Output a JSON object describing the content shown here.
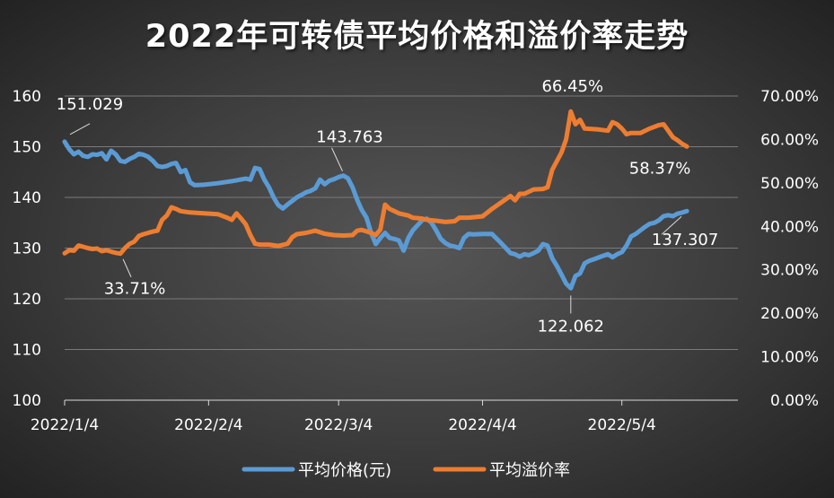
{
  "chart_data": {
    "type": "line",
    "title": "2022年可转债平均价格和溢价率走势",
    "x_tick_labels": [
      "2022/1/4",
      "2022/2/4",
      "2022/3/4",
      "2022/4/4",
      "2022/5/4"
    ],
    "x_ticks": [
      0,
      31,
      59,
      90,
      120
    ],
    "x_range": [
      0,
      145
    ],
    "y_left": {
      "range": [
        100,
        160
      ],
      "ticks": [
        100,
        110,
        120,
        130,
        140,
        150,
        160
      ]
    },
    "y_right": {
      "range": [
        0,
        70
      ],
      "ticks": [
        "0.00%",
        "10.00%",
        "20.00%",
        "30.00%",
        "40.00%",
        "50.00%",
        "60.00%",
        "70.00%"
      ]
    },
    "grid": true,
    "legend_position": "bottom",
    "colors": {
      "price": "#5b9bd5",
      "premium": "#ed7d31"
    },
    "series": [
      {
        "name": "平均价格(元)",
        "axis": "left",
        "points": [
          [
            0,
            151.0
          ],
          [
            1,
            149.5
          ],
          [
            2,
            148.5
          ],
          [
            3,
            149.0
          ],
          [
            4,
            148.2
          ],
          [
            5,
            148.0
          ],
          [
            6,
            148.5
          ],
          [
            7,
            148.4
          ],
          [
            8,
            148.7
          ],
          [
            9,
            147.5
          ],
          [
            10,
            149.2
          ],
          [
            11,
            148.5
          ],
          [
            12,
            147.2
          ],
          [
            13,
            147.0
          ],
          [
            14,
            147.6
          ],
          [
            15,
            148.0
          ],
          [
            16,
            148.6
          ],
          [
            17,
            148.4
          ],
          [
            18,
            148.0
          ],
          [
            19,
            147.2
          ],
          [
            20,
            146.2
          ],
          [
            21,
            146.0
          ],
          [
            22,
            146.2
          ],
          [
            23,
            146.6
          ],
          [
            24,
            146.8
          ],
          [
            25,
            145.0
          ],
          [
            26,
            145.4
          ],
          [
            27,
            143.0
          ],
          [
            28,
            142.4
          ],
          [
            30,
            142.5
          ],
          [
            33,
            142.8
          ],
          [
            36,
            143.2
          ],
          [
            39,
            143.7
          ],
          [
            40,
            143.5
          ],
          [
            41,
            145.8
          ],
          [
            42,
            145.6
          ],
          [
            43,
            143.5
          ],
          [
            44,
            142.0
          ],
          [
            45,
            140.0
          ],
          [
            46,
            138.5
          ],
          [
            47,
            137.8
          ],
          [
            48,
            138.6
          ],
          [
            49,
            139.3
          ],
          [
            50,
            140.0
          ],
          [
            51,
            140.5
          ],
          [
            52,
            141.0
          ],
          [
            53,
            141.3
          ],
          [
            54,
            141.8
          ],
          [
            55,
            143.5
          ],
          [
            56,
            142.6
          ],
          [
            57,
            143.3
          ],
          [
            58,
            143.6
          ],
          [
            59,
            144.0
          ],
          [
            60,
            144.3
          ],
          [
            61,
            143.763
          ],
          [
            62,
            142.0
          ],
          [
            63,
            139.5
          ],
          [
            64,
            137.5
          ],
          [
            65,
            136.0
          ],
          [
            66,
            133.0
          ],
          [
            67,
            130.8
          ],
          [
            68,
            132.0
          ],
          [
            69,
            133.0
          ],
          [
            70,
            132.0
          ],
          [
            71,
            131.8
          ],
          [
            72,
            131.5
          ],
          [
            73,
            129.5
          ],
          [
            74,
            132.0
          ],
          [
            75,
            133.5
          ],
          [
            76,
            134.5
          ],
          [
            77,
            135.5
          ],
          [
            78,
            135.8
          ],
          [
            79,
            135.0
          ],
          [
            80,
            133.5
          ],
          [
            81,
            131.8
          ],
          [
            82,
            131.0
          ],
          [
            83,
            130.5
          ],
          [
            84,
            130.3
          ],
          [
            85,
            130.0
          ],
          [
            86,
            132.0
          ],
          [
            87,
            132.8
          ],
          [
            88,
            132.7
          ],
          [
            90,
            132.8
          ],
          [
            92,
            132.8
          ],
          [
            94,
            131.0
          ],
          [
            95,
            130.0
          ],
          [
            96,
            129.0
          ],
          [
            97,
            128.8
          ],
          [
            98,
            128.3
          ],
          [
            99,
            128.8
          ],
          [
            100,
            128.6
          ],
          [
            101,
            129.0
          ],
          [
            102,
            129.5
          ],
          [
            103,
            130.8
          ],
          [
            104,
            130.5
          ],
          [
            105,
            128.0
          ],
          [
            106,
            126.5
          ],
          [
            107,
            124.8
          ],
          [
            108,
            123.0
          ],
          [
            109,
            122.062
          ],
          [
            110,
            124.5
          ],
          [
            111,
            125.0
          ],
          [
            112,
            127.0
          ],
          [
            113,
            127.5
          ],
          [
            114,
            127.8
          ],
          [
            116,
            128.5
          ],
          [
            117,
            128.8
          ],
          [
            118,
            128.2
          ],
          [
            119,
            128.8
          ],
          [
            120,
            129.2
          ],
          [
            121,
            130.5
          ],
          [
            122,
            132.3
          ],
          [
            123,
            132.8
          ],
          [
            124,
            133.5
          ],
          [
            125,
            134.2
          ],
          [
            126,
            134.8
          ],
          [
            127,
            135.0
          ],
          [
            128,
            135.5
          ],
          [
            129,
            136.3
          ],
          [
            130,
            136.5
          ],
          [
            131,
            136.3
          ],
          [
            132,
            136.8
          ],
          [
            133,
            137.0
          ],
          [
            134,
            137.307
          ]
        ]
      },
      {
        "name": "平均溢价率",
        "axis": "right",
        "points": [
          [
            0,
            33.8
          ],
          [
            1,
            34.5
          ],
          [
            2,
            34.4
          ],
          [
            3,
            35.6
          ],
          [
            4,
            35.3
          ],
          [
            5,
            35.0
          ],
          [
            6,
            34.8
          ],
          [
            7,
            34.9
          ],
          [
            8,
            34.3
          ],
          [
            9,
            34.5
          ],
          [
            10,
            34.2
          ],
          [
            11,
            33.9
          ],
          [
            12,
            33.71
          ],
          [
            13,
            35.0
          ],
          [
            14,
            36.0
          ],
          [
            15,
            36.5
          ],
          [
            16,
            37.8
          ],
          [
            17,
            38.2
          ],
          [
            18,
            38.5
          ],
          [
            19,
            38.8
          ],
          [
            20,
            39.0
          ],
          [
            21,
            41.5
          ],
          [
            22,
            42.5
          ],
          [
            23,
            44.4
          ],
          [
            24,
            44.0
          ],
          [
            25,
            43.5
          ],
          [
            27,
            43.2
          ],
          [
            30,
            43.0
          ],
          [
            33,
            42.8
          ],
          [
            35,
            42.0
          ],
          [
            36,
            41.5
          ],
          [
            37,
            43.0
          ],
          [
            38,
            41.8
          ],
          [
            39,
            40.5
          ],
          [
            40,
            38.0
          ],
          [
            41,
            36.0
          ],
          [
            42,
            35.8
          ],
          [
            44,
            35.8
          ],
          [
            46,
            35.5
          ],
          [
            48,
            36.0
          ],
          [
            49,
            37.5
          ],
          [
            50,
            38.2
          ],
          [
            52,
            38.5
          ],
          [
            54,
            39.0
          ],
          [
            56,
            38.3
          ],
          [
            58,
            38.0
          ],
          [
            60,
            37.9
          ],
          [
            62,
            38.0
          ],
          [
            63,
            39.0
          ],
          [
            64,
            39.2
          ],
          [
            66,
            38.5
          ],
          [
            67,
            38.0
          ],
          [
            68,
            39.3
          ],
          [
            69,
            45.0
          ],
          [
            70,
            44.0
          ],
          [
            71,
            43.5
          ],
          [
            72,
            43.0
          ],
          [
            74,
            42.5
          ],
          [
            75,
            42.0
          ],
          [
            77,
            41.8
          ],
          [
            78,
            41.5
          ],
          [
            80,
            41.3
          ],
          [
            82,
            41.0
          ],
          [
            84,
            41.2
          ],
          [
            85,
            42.0
          ],
          [
            87,
            42.0
          ],
          [
            90,
            42.3
          ],
          [
            92,
            44.0
          ],
          [
            94,
            45.5
          ],
          [
            96,
            47.0
          ],
          [
            97,
            46.0
          ],
          [
            98,
            47.5
          ],
          [
            99,
            47.5
          ],
          [
            101,
            48.5
          ],
          [
            103,
            48.6
          ],
          [
            104,
            49.0
          ],
          [
            105,
            53.0
          ],
          [
            106,
            55.0
          ],
          [
            107,
            57.0
          ],
          [
            108,
            60.0
          ],
          [
            109,
            66.45
          ],
          [
            110,
            63.5
          ],
          [
            111,
            64.5
          ],
          [
            112,
            62.5
          ],
          [
            115,
            62.3
          ],
          [
            117,
            62.0
          ],
          [
            118,
            64.0
          ],
          [
            119,
            63.5
          ],
          [
            120,
            62.5
          ],
          [
            121,
            61.2
          ],
          [
            122,
            61.5
          ],
          [
            124,
            61.5
          ],
          [
            126,
            62.5
          ],
          [
            128,
            63.3
          ],
          [
            129,
            63.5
          ],
          [
            130,
            62.0
          ],
          [
            131,
            60.5
          ],
          [
            132,
            59.8
          ],
          [
            133,
            59.0
          ],
          [
            134,
            58.37
          ]
        ]
      }
    ],
    "data_labels": [
      {
        "series": 0,
        "x": 0,
        "text": "151.029"
      },
      {
        "series": 1,
        "x": 12,
        "text": "33.71%"
      },
      {
        "series": 0,
        "x": 61,
        "text": "143.763"
      },
      {
        "series": 1,
        "x": 109,
        "text": "66.45%"
      },
      {
        "series": 0,
        "x": 109,
        "text": "122.062"
      },
      {
        "series": 1,
        "x": 134,
        "text": "58.37%"
      },
      {
        "series": 0,
        "x": 134,
        "text": "137.307"
      }
    ]
  }
}
